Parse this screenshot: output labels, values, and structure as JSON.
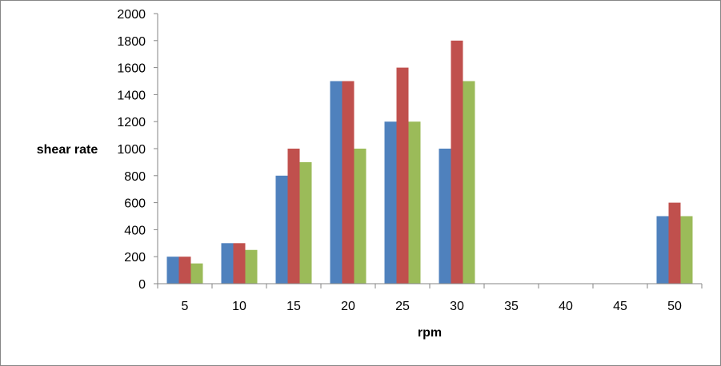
{
  "chart_data": {
    "type": "bar",
    "title": "",
    "xlabel": "rpm",
    "ylabel": "shear rate",
    "categories": [
      "5",
      "10",
      "15",
      "20",
      "25",
      "30",
      "35",
      "40",
      "45",
      "50"
    ],
    "series": [
      {
        "color": "#4F81BD",
        "values": [
          200,
          300,
          800,
          1500,
          1200,
          1000,
          0,
          0,
          0,
          500
        ]
      },
      {
        "color": "#C0504D",
        "values": [
          200,
          300,
          1000,
          1500,
          1600,
          1800,
          0,
          0,
          0,
          600
        ]
      },
      {
        "color": "#9BBB59",
        "values": [
          150,
          250,
          900,
          1000,
          1200,
          1500,
          0,
          0,
          0,
          500
        ]
      }
    ],
    "ylim": [
      0,
      2000
    ],
    "yticks": [
      "0",
      "200",
      "400",
      "600",
      "800",
      "1000",
      "1200",
      "1400",
      "1600",
      "1800",
      "2000"
    ],
    "grid": false,
    "legend": "none"
  }
}
